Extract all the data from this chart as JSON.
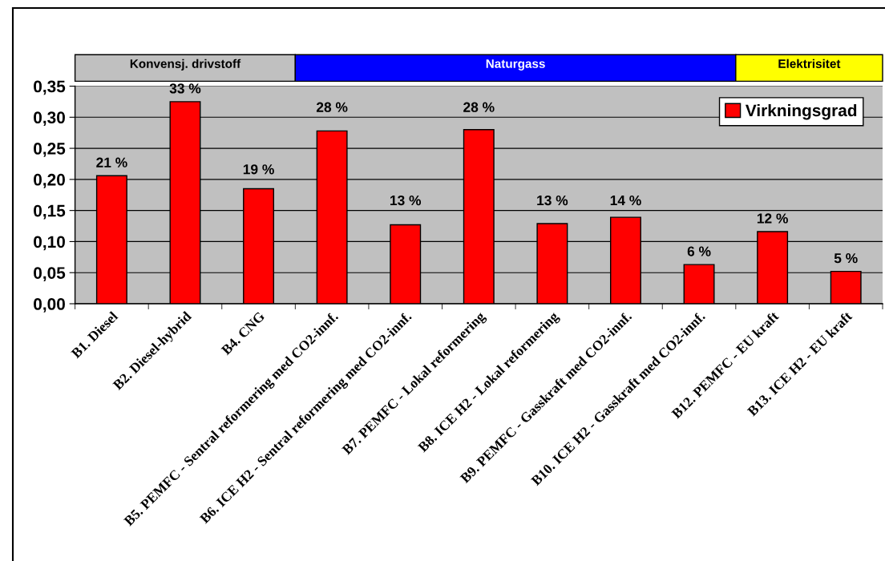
{
  "chart_data": {
    "type": "bar",
    "categories": [
      "B1. Diesel",
      "B2. Diesel-hybrid",
      "B4. CNG",
      "B5. PEMFC - Sentral reformering med CO2-innf.",
      "B6. ICE H2 - Sentral reformering med CO2-innf.",
      "B7. PEMFC - Lokal reformering",
      "B8. ICE H2 - Lokal reformering",
      "B9. PEMFC - Gasskraft med CO2-innf.",
      "B10. ICE H2 - Gasskraft med CO2-innf.",
      "B12. PEMFC - EU kraft",
      "B13. ICE H2 - EU kraft"
    ],
    "series": [
      {
        "name": "Virkningsgrad",
        "color": "#ff0000",
        "values": [
          0.206,
          0.325,
          0.185,
          0.278,
          0.127,
          0.28,
          0.129,
          0.139,
          0.063,
          0.116,
          0.052
        ],
        "value_labels": [
          "21 %",
          "33 %",
          "19 %",
          "28 %",
          "13 %",
          "28 %",
          "13 %",
          "14 %",
          "6 %",
          "12 %",
          "5 %"
        ]
      }
    ],
    "ylim": [
      0,
      0.35
    ],
    "yticks": [
      {
        "value": 0,
        "label": "0,00"
      },
      {
        "value": 0.05,
        "label": "0,05"
      },
      {
        "value": 0.1,
        "label": "0,10"
      },
      {
        "value": 0.15,
        "label": "0,15"
      },
      {
        "value": 0.2,
        "label": "0,20"
      },
      {
        "value": 0.25,
        "label": "0,25"
      },
      {
        "value": 0.3,
        "label": "0,30"
      },
      {
        "value": 0.35,
        "label": "0,35"
      }
    ],
    "grid": "y",
    "legend": "top right",
    "annotations": [
      "Konvensj. drivstoff",
      "Naturgass",
      "Elektrisitet"
    ]
  }
}
